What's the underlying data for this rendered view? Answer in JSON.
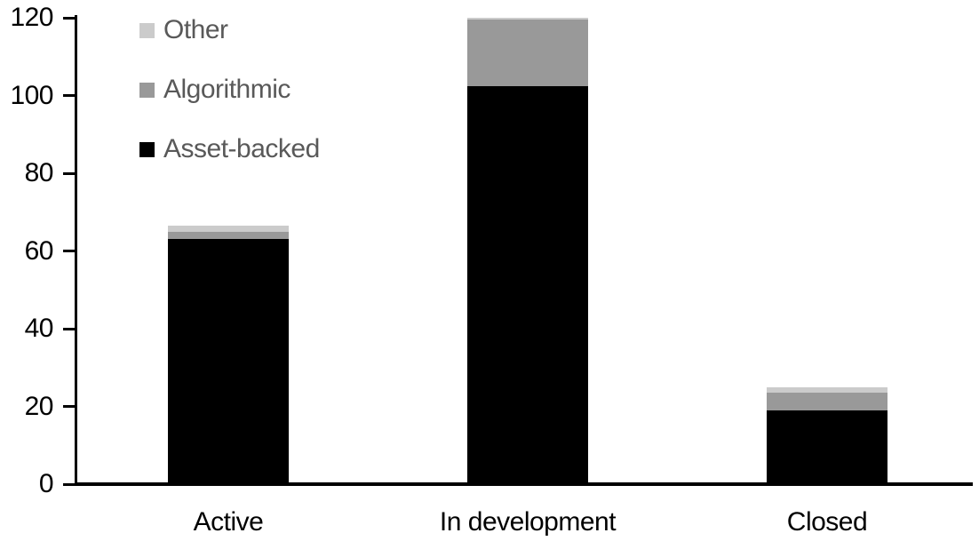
{
  "chart_data": {
    "type": "bar",
    "stacked": true,
    "title": "",
    "xlabel": "",
    "ylabel": "",
    "categories": [
      "Active",
      "In development",
      "Closed"
    ],
    "series": [
      {
        "name": "Asset-backed",
        "color": "#000000",
        "values": [
          63,
          102.5,
          19
        ]
      },
      {
        "name": "Algorithmic",
        "color": "#999999",
        "values": [
          2,
          17,
          4.5
        ]
      },
      {
        "name": "Other",
        "color": "#cbcbcb",
        "values": [
          1.5,
          0.5,
          1.5
        ]
      }
    ],
    "stack_totals": [
      66.5,
      120,
      25
    ],
    "ylim": [
      0,
      120
    ],
    "yticks": [
      0,
      20,
      40,
      60,
      80,
      100,
      120
    ],
    "grid": false,
    "legend": {
      "position": "top-left",
      "entries": [
        "Other",
        "Algorithmic",
        "Asset-backed"
      ],
      "text_color": "#595959"
    }
  }
}
